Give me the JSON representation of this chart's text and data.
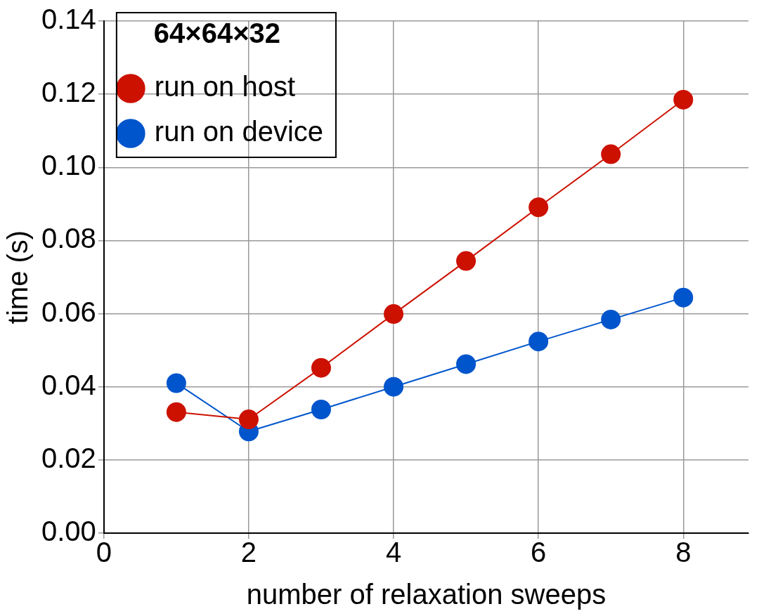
{
  "chart_data": {
    "type": "line",
    "xlabel": "number of relaxation sweeps",
    "ylabel": "time (s)",
    "legend_title": "64×64×32",
    "x": [
      1,
      2,
      3,
      4,
      5,
      6,
      7,
      8
    ],
    "series": [
      {
        "name": "run on host",
        "color": "#cc1100",
        "values": [
          0.0331,
          0.0311,
          0.0452,
          0.0599,
          0.0744,
          0.0891,
          0.1036,
          0.1185
        ]
      },
      {
        "name": "run on device",
        "color": "#0055cc",
        "values": [
          0.041,
          0.0278,
          0.0338,
          0.04,
          0.0462,
          0.0524,
          0.0584,
          0.0644
        ]
      }
    ],
    "xlim": [
      0,
      8.9
    ],
    "xticks": [
      0,
      2,
      4,
      6,
      8
    ],
    "ylim": [
      0,
      0.14
    ],
    "yticks": [
      {
        "value": 0,
        "label": "0.00"
      },
      {
        "value": 0.02,
        "label": "0.02"
      },
      {
        "value": 0.04,
        "label": "0.04"
      },
      {
        "value": 0.06,
        "label": "0.06"
      },
      {
        "value": 0.08,
        "label": "0.08"
      },
      {
        "value": 0.1,
        "label": "0.10"
      },
      {
        "value": 0.12,
        "label": "0.12"
      },
      {
        "value": 0.14,
        "label": "0.14"
      }
    ],
    "grid": true,
    "legend": "top left",
    "marker": "circle",
    "line_style": "solid"
  }
}
